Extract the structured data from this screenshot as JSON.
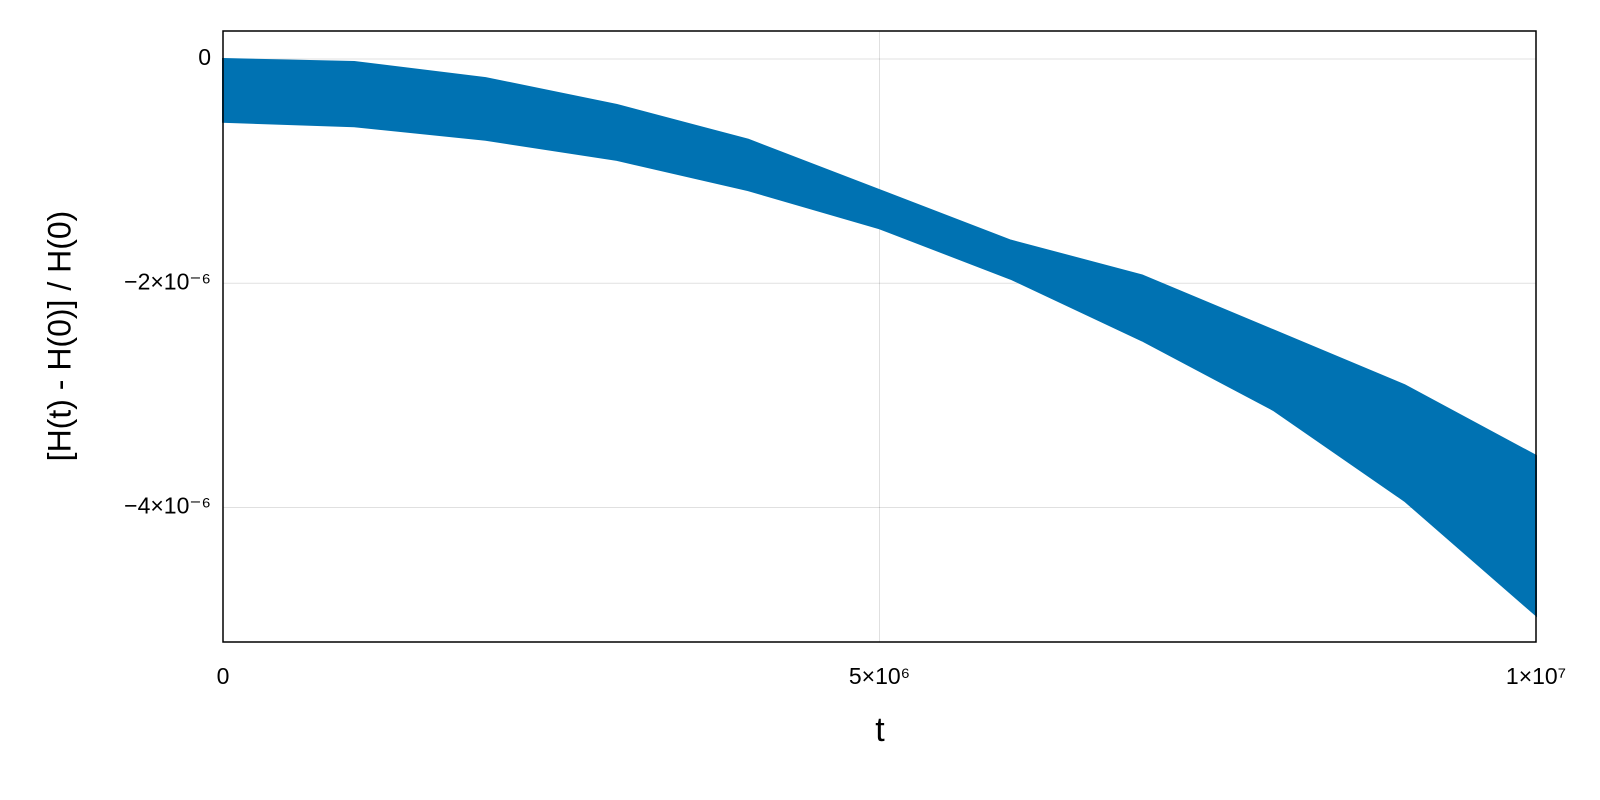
{
  "chart_data": {
    "type": "band",
    "xlabel": "t",
    "ylabel": "[H(t) - H(0)] / H(0)",
    "x": [
      0,
      1000000,
      2000000,
      3000000,
      4000000,
      5000000,
      6000000,
      7000000,
      8000000,
      9000000,
      10000000
    ],
    "upper": [
      0,
      -2.7e-08,
      -1.7e-07,
      -4.1e-07,
      -7.2e-07,
      -1.17e-06,
      -1.62e-06,
      -1.93e-06,
      -2.42e-06,
      -2.91e-06,
      -3.54e-06
    ],
    "lower": [
      -5.6e-07,
      -6e-07,
      -7.2e-07,
      -9e-07,
      -1.17e-06,
      -1.51e-06,
      -1.96e-06,
      -2.51e-06,
      -3.13e-06,
      -3.94e-06,
      -4.96e-06
    ],
    "color": "#0072b2",
    "xlim": [
      0,
      10000000
    ],
    "ylim": [
      -5.2e-06,
      2.5e-07
    ],
    "xticks": [
      0,
      {
        "value": 5000000,
        "label": "5×10⁶"
      },
      {
        "value": 10000000,
        "label": "1×10⁷"
      }
    ],
    "yticks": [
      0,
      {
        "value": -2e-06,
        "label": "−2×10⁻⁶"
      },
      {
        "value": -4e-06,
        "label": "−4×10⁻⁶"
      }
    ],
    "grid": true
  }
}
